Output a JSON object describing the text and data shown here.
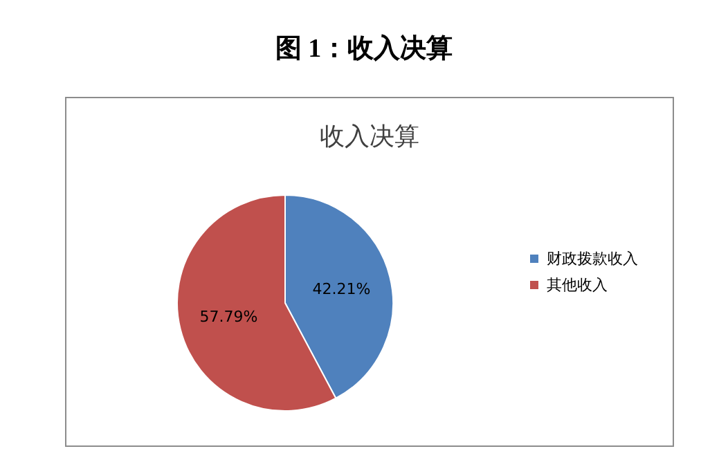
{
  "chart_data": {
    "type": "pie",
    "title": "图 1：收入决算",
    "subtitle": "收入决算",
    "categories": [
      "财政拨款收入",
      "其他收入"
    ],
    "values": [
      42.21,
      57.79
    ],
    "colors": [
      "#4f81bd",
      "#c0504d"
    ],
    "value_labels": [
      "42.21%",
      "57.79%"
    ],
    "legend": "right"
  }
}
